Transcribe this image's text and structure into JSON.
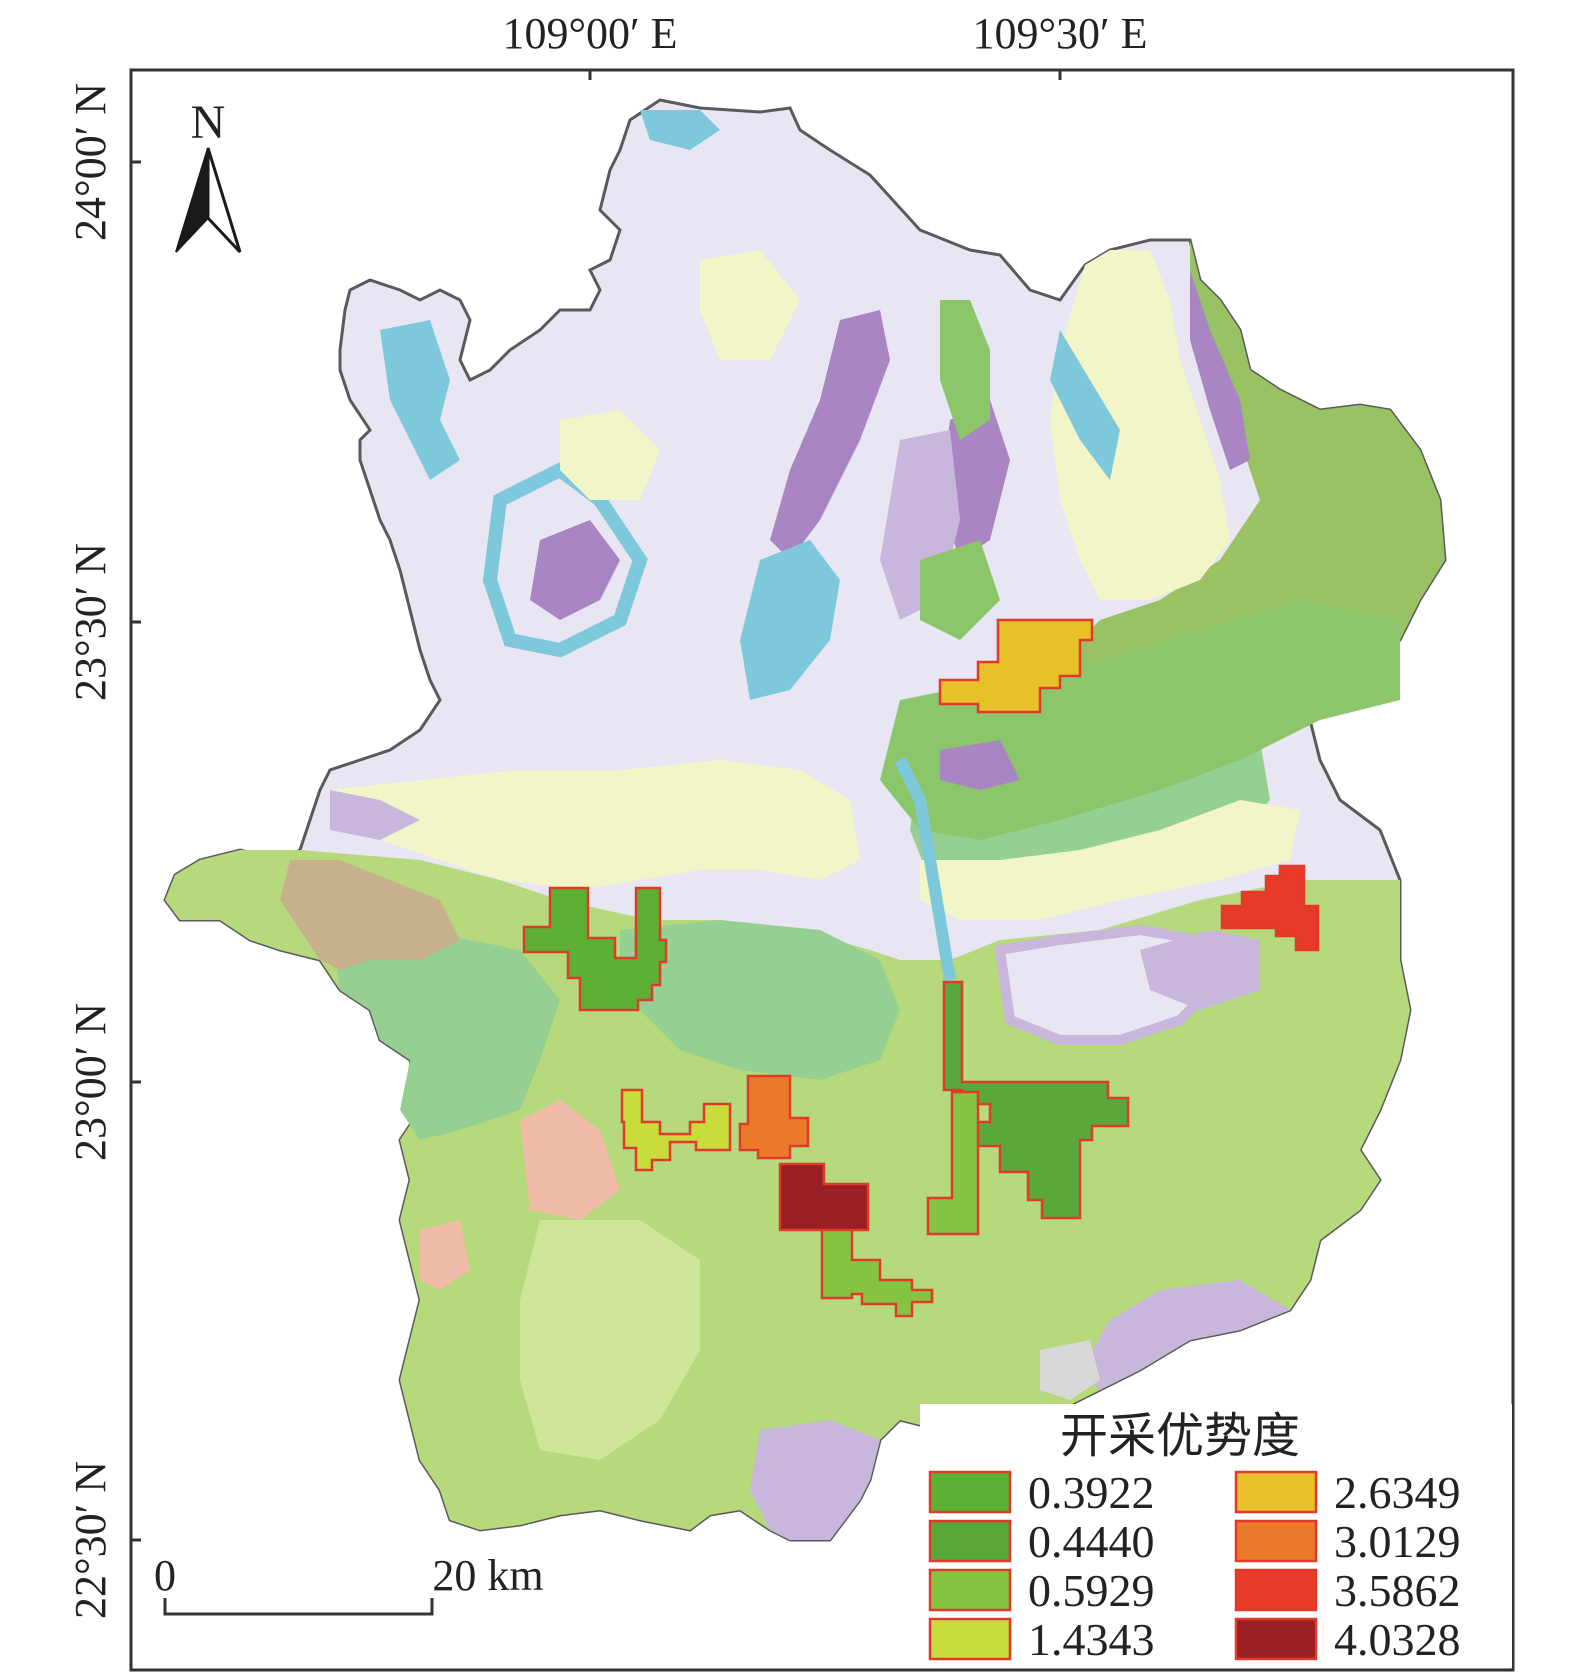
{
  "map": {
    "north_label": "N",
    "lon_ticks": [
      {
        "label": "109°00′ E"
      },
      {
        "label": "109°30′ E"
      }
    ],
    "lat_ticks": [
      {
        "label": "24°00′ N"
      },
      {
        "label": "23°30′ N"
      },
      {
        "label": "23°00′ N"
      },
      {
        "label": "22°30′ N"
      }
    ],
    "scale_bar": {
      "start_label": "0",
      "end_label": "20 km"
    }
  },
  "legend": {
    "title": "开采优势度",
    "items": [
      {
        "value": "0.3922",
        "color": "#5cb135"
      },
      {
        "value": "0.4440",
        "color": "#5aa83a"
      },
      {
        "value": "0.5929",
        "color": "#85c440"
      },
      {
        "value": "1.4343",
        "color": "#c8dc3c"
      },
      {
        "value": "2.6349",
        "color": "#e8c12a"
      },
      {
        "value": "3.0129",
        "color": "#ea7a2a"
      },
      {
        "value": "3.5862",
        "color": "#e83a28"
      },
      {
        "value": "4.0328",
        "color": "#9a1f24"
      }
    ],
    "outline_color": "#e03a2a"
  },
  "colors": {
    "background": "#ffffff",
    "region_outline": "#5a5a5a",
    "lavender": "#e8e6f3",
    "purple": "#a985c4",
    "light_purple": "#c8b6dc",
    "cyan": "#7ec8dc",
    "pale_yellow": "#f2f5c8",
    "light_green": "#b6d97c",
    "mid_green": "#8cc66a",
    "sea_green": "#96cf92",
    "olive_green": "#98c264",
    "tan": "#c6b18c",
    "salmon": "#f0bca8",
    "gray": "#d8d8d8"
  }
}
